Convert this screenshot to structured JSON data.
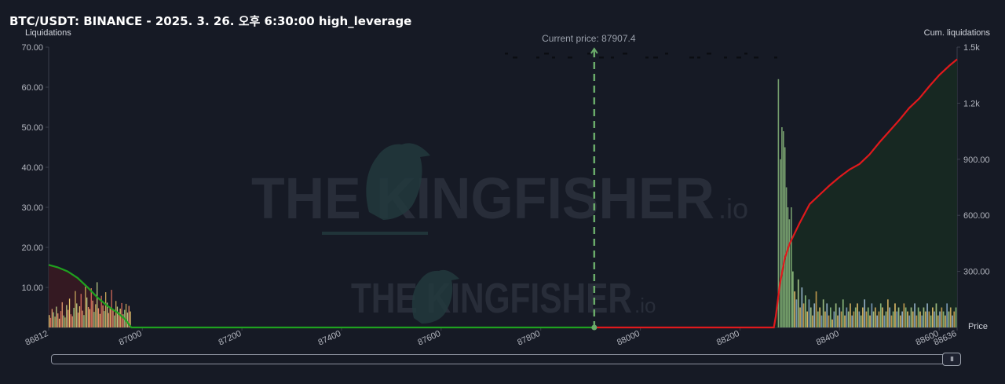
{
  "title": "BTC/USDT: BINANCE - 2025. 3. 26. 오후 6:30:00 high_leverage",
  "colors": {
    "background": "#161a25",
    "long_curve": "#1fa11f",
    "short_curve": "#e0191c",
    "current_price_line": "#6aab6a",
    "long_fill": "#3a1a22",
    "short_fill": "#172a22"
  },
  "watermark": {
    "brand": "THE KINGFISHER",
    "suffix": ".io"
  },
  "scrollbar": {
    "handle_icon": "grip-icon",
    "handle_glyph": "III"
  },
  "chart_data": {
    "type": "bar",
    "title": "BTC/USDT: BINANCE - 2025. 3. 26. 오후 6:30:00 high_leverage",
    "y_left_label": "Liquidations",
    "y_right_label": "Cum. liquidations",
    "x_label": "Price",
    "current_price_label": "Current price: 87907.4",
    "current_price": 87907.4,
    "xlim": [
      86812,
      88636
    ],
    "ylim_left": [
      0,
      70
    ],
    "ylim_right": [
      0,
      1500
    ],
    "y_left_ticks": [
      "10.00",
      "20.00",
      "30.00",
      "40.00",
      "50.00",
      "60.00",
      "70.00"
    ],
    "y_right_ticks": [
      "300.00",
      "600.00",
      "900.00",
      "1.2k",
      "1.5k"
    ],
    "x_ticks": [
      "86812",
      "87000",
      "87200",
      "87400",
      "87600",
      "87800",
      "88000",
      "88200",
      "88400",
      "88600",
      "88636"
    ],
    "long_cumulative": {
      "name": "Long liquidations (cumulative)",
      "points": [
        [
          86812,
          335
        ],
        [
          86830,
          322
        ],
        [
          86850,
          300
        ],
        [
          86870,
          265
        ],
        [
          86890,
          215
        ],
        [
          86910,
          160
        ],
        [
          86930,
          115
        ],
        [
          86950,
          80
        ],
        [
          86965,
          45
        ],
        [
          86978,
          0
        ],
        [
          87907.4,
          0
        ]
      ]
    },
    "short_cumulative": {
      "name": "Short liquidations (cumulative)",
      "points": [
        [
          87907.4,
          0
        ],
        [
          88268,
          0
        ],
        [
          88272,
          60
        ],
        [
          88280,
          230
        ],
        [
          88290,
          370
        ],
        [
          88300,
          450
        ],
        [
          88320,
          560
        ],
        [
          88340,
          660
        ],
        [
          88360,
          710
        ],
        [
          88380,
          760
        ],
        [
          88400,
          805
        ],
        [
          88420,
          845
        ],
        [
          88440,
          875
        ],
        [
          88460,
          925
        ],
        [
          88480,
          990
        ],
        [
          88500,
          1050
        ],
        [
          88520,
          1110
        ],
        [
          88540,
          1175
        ],
        [
          88560,
          1225
        ],
        [
          88580,
          1290
        ],
        [
          88600,
          1350
        ],
        [
          88620,
          1400
        ],
        [
          88636,
          1435
        ]
      ]
    },
    "long_bars": {
      "x_range": [
        86812,
        86978
      ],
      "heights": [
        3.1,
        2.4,
        4.6,
        3.8,
        2.7,
        5.2,
        3.5,
        2.2,
        4.1,
        6.3,
        3.0,
        2.5,
        5.6,
        4.4,
        7.2,
        3.3,
        2.8,
        4.9,
        9.1,
        6.0,
        3.7,
        5.3,
        8.4,
        4.2,
        3.1,
        10.2,
        7.5,
        5.1,
        4.6,
        9.8,
        6.7,
        3.9,
        5.8,
        11.3,
        4.8,
        3.4,
        7.9,
        5.5,
        4.1,
        8.8,
        6.2,
        3.6,
        5.0,
        9.4,
        4.3,
        3.0,
        6.6,
        5.2,
        3.8,
        4.7,
        6.1,
        3.3,
        4.4,
        5.9,
        3.7,
        5.4,
        4.0
      ]
    },
    "short_bars": {
      "x_range": [
        88272,
        88636
      ],
      "tall": [
        [
          88276,
          62
        ],
        [
          88280,
          42
        ],
        [
          88283,
          50
        ],
        [
          88286,
          49
        ],
        [
          88289,
          45
        ],
        [
          88292,
          35
        ],
        [
          88295,
          30
        ],
        [
          88298,
          27
        ],
        [
          88302,
          30
        ]
      ],
      "heights": [
        14,
        9,
        7,
        12,
        5,
        10,
        6,
        8,
        4,
        7,
        5,
        3,
        6,
        9,
        4,
        5,
        3,
        7,
        4,
        6,
        3,
        5,
        2,
        4,
        6,
        3,
        5,
        4,
        7,
        3,
        5,
        4,
        6,
        3,
        4,
        5,
        6,
        4,
        3,
        5,
        7,
        4,
        5,
        3,
        6,
        4,
        5,
        3,
        4,
        6,
        5,
        3,
        4,
        7,
        5,
        3,
        4,
        6,
        4,
        5,
        3,
        4,
        6,
        5,
        4,
        3,
        5,
        4,
        6,
        3,
        5,
        4,
        3,
        5,
        4,
        6,
        4,
        3,
        5,
        4,
        6,
        3,
        4,
        5,
        4,
        3,
        6,
        4,
        5,
        3,
        4,
        5
      ]
    }
  }
}
